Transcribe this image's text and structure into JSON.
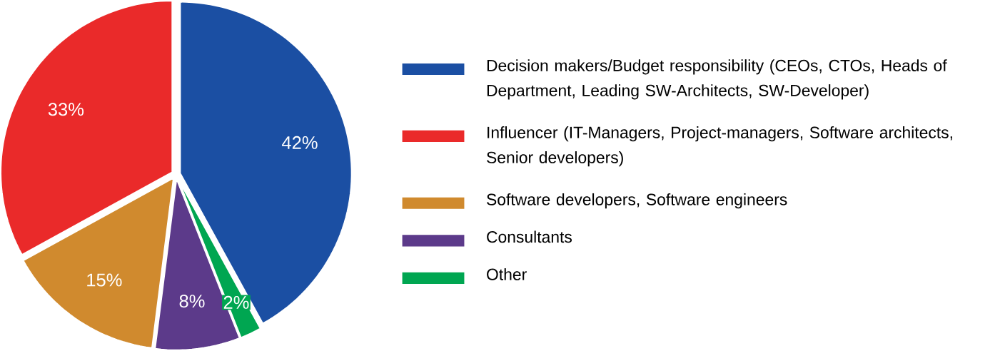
{
  "chart_data": {
    "type": "pie",
    "categories": [
      "Decision makers/Budget responsibility (CEOs, CTOs, Heads of Department, Leading SW-Architects, SW-Developer)",
      "Influencer (IT-Managers, Project-managers, Software architects, Senior developers)",
      "Software developers, Software engineers",
      "Consultants",
      "Other"
    ],
    "values": [
      42,
      33,
      15,
      8,
      2
    ],
    "value_labels": [
      "42%",
      "33%",
      "15%",
      "8%",
      "2%"
    ],
    "colors": [
      "#1b4fa3",
      "#ea2a2a",
      "#d08a2e",
      "#5c3a8a",
      "#00a651"
    ],
    "legend": "right"
  }
}
